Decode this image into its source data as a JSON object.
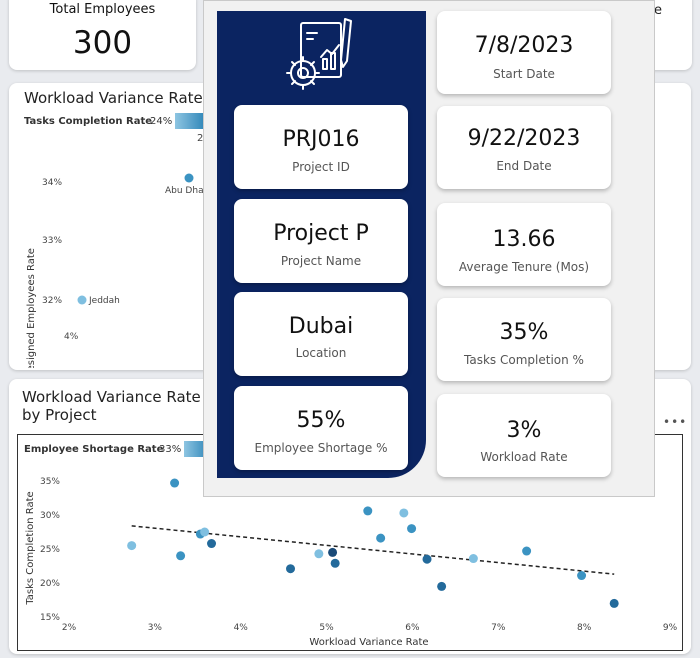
{
  "kpis": {
    "total_employees": {
      "title": "Total Employees",
      "value": "300"
    },
    "partial_title": "te"
  },
  "chart1": {
    "title": "Workload Variance Rate",
    "slicer": {
      "label": "Tasks Completion Rate",
      "value": "24%"
    },
    "extra_tick": "2",
    "chart_data": {
      "type": "scatter",
      "title": "Workload Variance Rate",
      "xlabel": "",
      "ylabel": "Resigned Employees Rate",
      "x_tick_labels": [
        "4%"
      ],
      "y_tick_labels": [
        "34%",
        "33%",
        "32%"
      ],
      "points": [
        {
          "label": "Abu Dhabi",
          "shown_label": "Abu Dha",
          "x": null,
          "y": 34.1
        },
        {
          "label": "Jeddah",
          "shown_label": "Jeddah",
          "x": 4.1,
          "y": 32.0
        }
      ]
    }
  },
  "chart2": {
    "title_line1": "Workload Variance Rate a",
    "title_line2": "by Project",
    "more_icon": "more-options-icon",
    "slicer": {
      "label": "Employee Shortage Rate",
      "value": "33%"
    },
    "chart_data": {
      "type": "scatter",
      "title": "Workload Variance Rate and ... by Project",
      "xlabel": "Workload Variance Rate",
      "ylabel": "Tasks Completion Rate",
      "xlim": [
        2,
        9
      ],
      "ylim": [
        15,
        35
      ],
      "x_ticks": [
        "2%",
        "3%",
        "4%",
        "5%",
        "6%",
        "7%",
        "8%",
        "9%"
      ],
      "y_ticks": [
        "15%",
        "20%",
        "25%",
        "30%",
        "35%"
      ],
      "trendline": {
        "x1": 2.73,
        "y1": 28.4,
        "x2": 8.35,
        "y2": 21.3,
        "style": "dashed"
      },
      "points": [
        {
          "x": 2.73,
          "y": 25.5,
          "shade": "light"
        },
        {
          "x": 3.23,
          "y": 34.7,
          "shade": "mid"
        },
        {
          "x": 3.3,
          "y": 24.0,
          "shade": "mid"
        },
        {
          "x": 3.53,
          "y": 27.2,
          "shade": "mid"
        },
        {
          "x": 3.58,
          "y": 27.5,
          "shade": "light"
        },
        {
          "x": 3.66,
          "y": 25.8,
          "shade": "dark"
        },
        {
          "x": 4.58,
          "y": 22.1,
          "shade": "dark"
        },
        {
          "x": 4.91,
          "y": 24.3,
          "shade": "light"
        },
        {
          "x": 5.07,
          "y": 24.5,
          "shade": "navy"
        },
        {
          "x": 5.1,
          "y": 22.9,
          "shade": "dark"
        },
        {
          "x": 5.48,
          "y": 30.6,
          "shade": "mid"
        },
        {
          "x": 5.63,
          "y": 26.6,
          "shade": "mid"
        },
        {
          "x": 5.9,
          "y": 30.3,
          "shade": "light"
        },
        {
          "x": 5.99,
          "y": 28.0,
          "shade": "mid"
        },
        {
          "x": 6.17,
          "y": 23.5,
          "shade": "dark"
        },
        {
          "x": 6.34,
          "y": 19.5,
          "shade": "dark"
        },
        {
          "x": 6.71,
          "y": 23.6,
          "shade": "light"
        },
        {
          "x": 7.33,
          "y": 24.7,
          "shade": "mid"
        },
        {
          "x": 7.97,
          "y": 21.1,
          "shade": "mid"
        },
        {
          "x": 8.35,
          "y": 17.0,
          "shade": "dark"
        }
      ]
    }
  },
  "tooltip": {
    "icon": "project-gear-document-icon",
    "project_id": {
      "value": "PRJ016",
      "label": "Project ID"
    },
    "project_name": {
      "value": "Project P",
      "label": "Project Name"
    },
    "location": {
      "value": "Dubai",
      "label": "Location"
    },
    "employee_shortage": {
      "value": "55%",
      "label": "Employee Shortage %"
    },
    "start_date": {
      "value": "7/8/2023",
      "label": "Start Date"
    },
    "end_date": {
      "value": "9/22/2023",
      "label": "End Date"
    },
    "avg_tenure": {
      "value": "13.66",
      "label": "Average Tenure (Mos)"
    },
    "tasks_completion": {
      "value": "35%",
      "label": "Tasks Completion %"
    },
    "workload_rate": {
      "value": "3%",
      "label": "Workload Rate"
    }
  },
  "colors": {
    "navy": "#0b2461",
    "point_light": "#7fbfe0",
    "point_mid": "#3b93c2",
    "point_dark": "#236a9b",
    "point_navy": "#1a4a78"
  }
}
